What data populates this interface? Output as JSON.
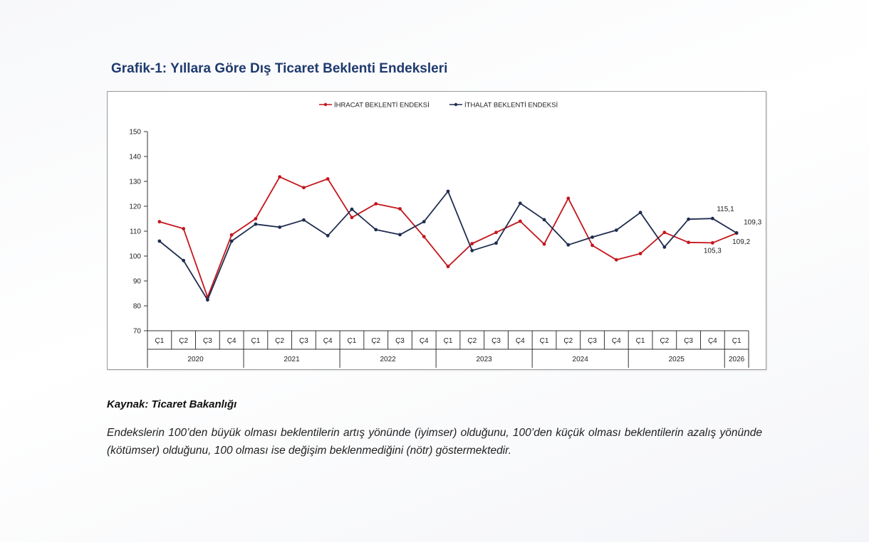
{
  "title": "Grafik-1: Yıllara Göre Dış Ticaret Beklenti Endeksleri",
  "source": "Kaynak: Ticaret Bakanlığı",
  "note": "Endekslerin 100’den büyük olması beklentilerin artış yönünde (iyimser) olduğunu, 100’den küçük olması beklentilerin azalış yönünde (kötümser) olduğunu, 100 olması ise değişim beklenmediğini (nötr) göstermektedir.",
  "colors": {
    "export": "#c4161c",
    "import": "#1f2d4f"
  },
  "chart_data": {
    "type": "line",
    "title": "",
    "xlabel": "",
    "ylabel": "",
    "ylim": [
      70,
      150
    ],
    "yticks": [
      70,
      80,
      90,
      100,
      110,
      120,
      130,
      140,
      150
    ],
    "categories": [
      "Ç1",
      "Ç2",
      "Ç3",
      "Ç4",
      "Ç1",
      "Ç2",
      "Ç3",
      "Ç4",
      "Ç1",
      "Ç2",
      "Ç3",
      "Ç4",
      "Ç1",
      "Ç2",
      "Ç3",
      "Ç4",
      "Ç1",
      "Ç2",
      "Ç3",
      "Ç4",
      "Ç1",
      "Ç2",
      "Ç3",
      "Ç4",
      "Ç1"
    ],
    "years": [
      {
        "label": "2020",
        "count": 4
      },
      {
        "label": "2021",
        "count": 4
      },
      {
        "label": "2022",
        "count": 4
      },
      {
        "label": "2023",
        "count": 4
      },
      {
        "label": "2024",
        "count": 4
      },
      {
        "label": "2025",
        "count": 4
      },
      {
        "label": "2026",
        "count": 1
      }
    ],
    "legend_position": "top-center",
    "series": [
      {
        "name": "İHRACAT BEKLENTİ ENDEKSİ",
        "color": "#c4161c",
        "values": [
          113.8,
          111,
          83.5,
          108.5,
          115,
          131.8,
          127.5,
          131,
          115.5,
          121,
          119,
          107.8,
          95.8,
          105,
          109.5,
          114,
          104.8,
          123.2,
          104.3,
          98.5,
          101,
          109.5,
          105.5,
          105.3,
          109.2
        ]
      },
      {
        "name": "İTHALAT BEKLENTİ ENDEKSİ",
        "color": "#1f2d4f",
        "values": [
          106,
          98.2,
          82.4,
          106,
          112.8,
          111.6,
          114.5,
          108.2,
          118.8,
          110.6,
          108.6,
          113.8,
          126,
          102.2,
          105.2,
          121.2,
          114.6,
          104.5,
          107.6,
          110.4,
          117.5,
          103.6,
          114.8,
          115.1,
          109.3
        ]
      }
    ],
    "annotations": [
      {
        "series": 1,
        "index": 23,
        "text": "115,1"
      },
      {
        "series": 0,
        "index": 23,
        "text": "105,3"
      },
      {
        "series": 1,
        "index": 24,
        "text": "109,3"
      },
      {
        "series": 0,
        "index": 24,
        "text": "109,2"
      }
    ]
  }
}
